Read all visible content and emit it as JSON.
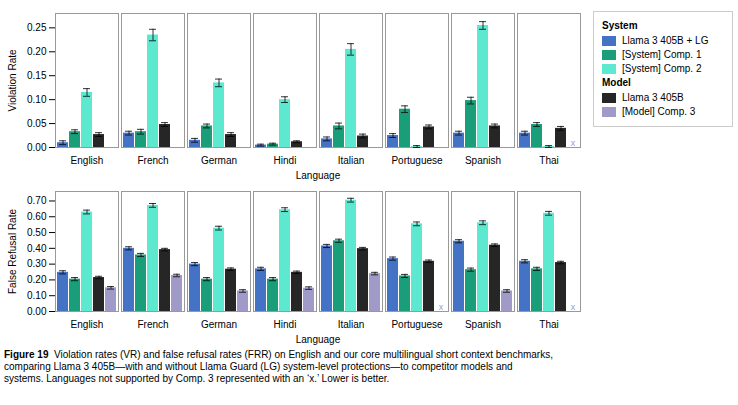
{
  "chart_data": [
    {
      "type": "bar",
      "ylabel": "Violation Rate",
      "xlabel": "Language",
      "categories": [
        "English",
        "French",
        "German",
        "Hindi",
        "Italian",
        "Portuguese",
        "Spanish",
        "Thai"
      ],
      "series": [
        {
          "name": "Llama 3 405B + LG",
          "group": "System",
          "color": "#4472c4",
          "values": [
            0.01,
            0.03,
            0.015,
            0.005,
            0.018,
            0.025,
            0.03,
            0.03
          ],
          "errors": [
            0.004,
            0.004,
            0.004,
            0.002,
            0.004,
            0.004,
            0.004,
            0.004
          ]
        },
        {
          "name": "[System] Comp. 1",
          "group": "System",
          "color": "#1a9e7a",
          "values": [
            0.033,
            0.033,
            0.045,
            0.007,
            0.045,
            0.08,
            0.098,
            0.048
          ],
          "errors": [
            0.004,
            0.005,
            0.004,
            0.002,
            0.006,
            0.007,
            0.007,
            0.004
          ]
        },
        {
          "name": "[System] Comp. 2",
          "group": "System",
          "color": "#5de8d0",
          "values": [
            0.115,
            0.235,
            0.135,
            0.1,
            0.205,
            0.002,
            0.255,
            0.002
          ],
          "errors": [
            0.008,
            0.012,
            0.008,
            0.006,
            0.012,
            0.002,
            0.008,
            0.002
          ]
        },
        {
          "name": "Llama 3 405B",
          "group": "Model",
          "color": "#262626",
          "values": [
            0.027,
            0.048,
            0.027,
            0.012,
            0.024,
            0.043,
            0.045,
            0.04
          ],
          "errors": [
            0.004,
            0.004,
            0.004,
            0.002,
            0.004,
            0.004,
            0.004,
            0.004
          ]
        },
        {
          "name": "[Model] Comp. 3",
          "group": "Model",
          "color": "#a09ac8",
          "values": [
            null,
            null,
            null,
            null,
            null,
            null,
            null,
            null
          ],
          "errors": [
            null,
            null,
            null,
            null,
            null,
            null,
            null,
            null
          ]
        }
      ],
      "annotations": [
        {
          "category": "Thai",
          "series": "[Model] Comp. 3",
          "text": "x"
        }
      ],
      "ylim": [
        0.0,
        0.28
      ],
      "yticks": [
        {
          "value": 0.0,
          "label": "0.00"
        },
        0.05,
        {
          "value": 0.1,
          "label": "0.10"
        },
        0.15,
        {
          "value": 0.2,
          "label": "0.20"
        },
        0.25
      ],
      "legend": "right"
    },
    {
      "type": "bar",
      "ylabel": "False Refusal Rate",
      "xlabel": "Language",
      "categories": [
        "English",
        "French",
        "German",
        "Hindi",
        "Italian",
        "Portuguese",
        "Spanish",
        "Thai"
      ],
      "series": [
        {
          "name": "Llama 3 405B + LG",
          "group": "System",
          "color": "#4472c4",
          "values": [
            0.248,
            0.4,
            0.3,
            0.27,
            0.415,
            0.335,
            0.445,
            0.318
          ],
          "errors": [
            0.01,
            0.01,
            0.01,
            0.01,
            0.01,
            0.01,
            0.01,
            0.01
          ]
        },
        {
          "name": "[System] Comp. 1",
          "group": "System",
          "color": "#1a9e7a",
          "values": [
            0.205,
            0.358,
            0.205,
            0.205,
            0.448,
            0.225,
            0.265,
            0.27
          ],
          "errors": [
            0.01,
            0.01,
            0.01,
            0.01,
            0.01,
            0.01,
            0.01,
            0.01
          ]
        },
        {
          "name": "[System] Comp. 2",
          "group": "System",
          "color": "#5de8d0",
          "values": [
            0.63,
            0.672,
            0.528,
            0.645,
            0.705,
            0.555,
            0.562,
            0.622
          ],
          "errors": [
            0.012,
            0.012,
            0.012,
            0.012,
            0.012,
            0.012,
            0.012,
            0.012
          ]
        },
        {
          "name": "Llama 3 405B",
          "group": "Model",
          "color": "#262626",
          "values": [
            0.215,
            0.392,
            0.268,
            0.248,
            0.398,
            0.318,
            0.42,
            0.31
          ],
          "errors": [
            0.008,
            0.008,
            0.008,
            0.008,
            0.008,
            0.008,
            0.008,
            0.008
          ]
        },
        {
          "name": "[Model] Comp. 3",
          "group": "Model",
          "color": "#a09ac8",
          "values": [
            0.15,
            0.228,
            0.13,
            0.148,
            0.24,
            null,
            0.13,
            null
          ],
          "errors": [
            0.008,
            0.008,
            0.008,
            0.008,
            0.008,
            null,
            0.008,
            null
          ]
        }
      ],
      "annotations": [
        {
          "category": "Portuguese",
          "series": "[Model] Comp. 3",
          "text": "x"
        },
        {
          "category": "Thai",
          "series": "[Model] Comp. 3",
          "text": "x"
        }
      ],
      "ylim": [
        0.0,
        0.76
      ],
      "yticks": [
        {
          "value": 0.0,
          "label": "0.00"
        },
        {
          "value": 0.1,
          "label": "0.10"
        },
        {
          "value": 0.2,
          "label": "0.20"
        },
        {
          "value": 0.3,
          "label": "0.30"
        },
        {
          "value": 0.4,
          "label": "0.40"
        },
        {
          "value": 0.5,
          "label": "0.50"
        },
        {
          "value": 0.6,
          "label": "0.60"
        },
        {
          "value": 0.7,
          "label": "0.70"
        }
      ]
    }
  ],
  "caption_title": "Figure 19",
  "caption": "  Violation rates (VR) and false refusal rates (FRR) on English and our core multilingual short context benchmarks,\ncomparing Llama 3 405B—with and without Llama Guard (LG) system-level protections—to competitor models and\nsystems. Languages not supported by Comp. 3 represented with an ‘x.’ Lower is better."
}
